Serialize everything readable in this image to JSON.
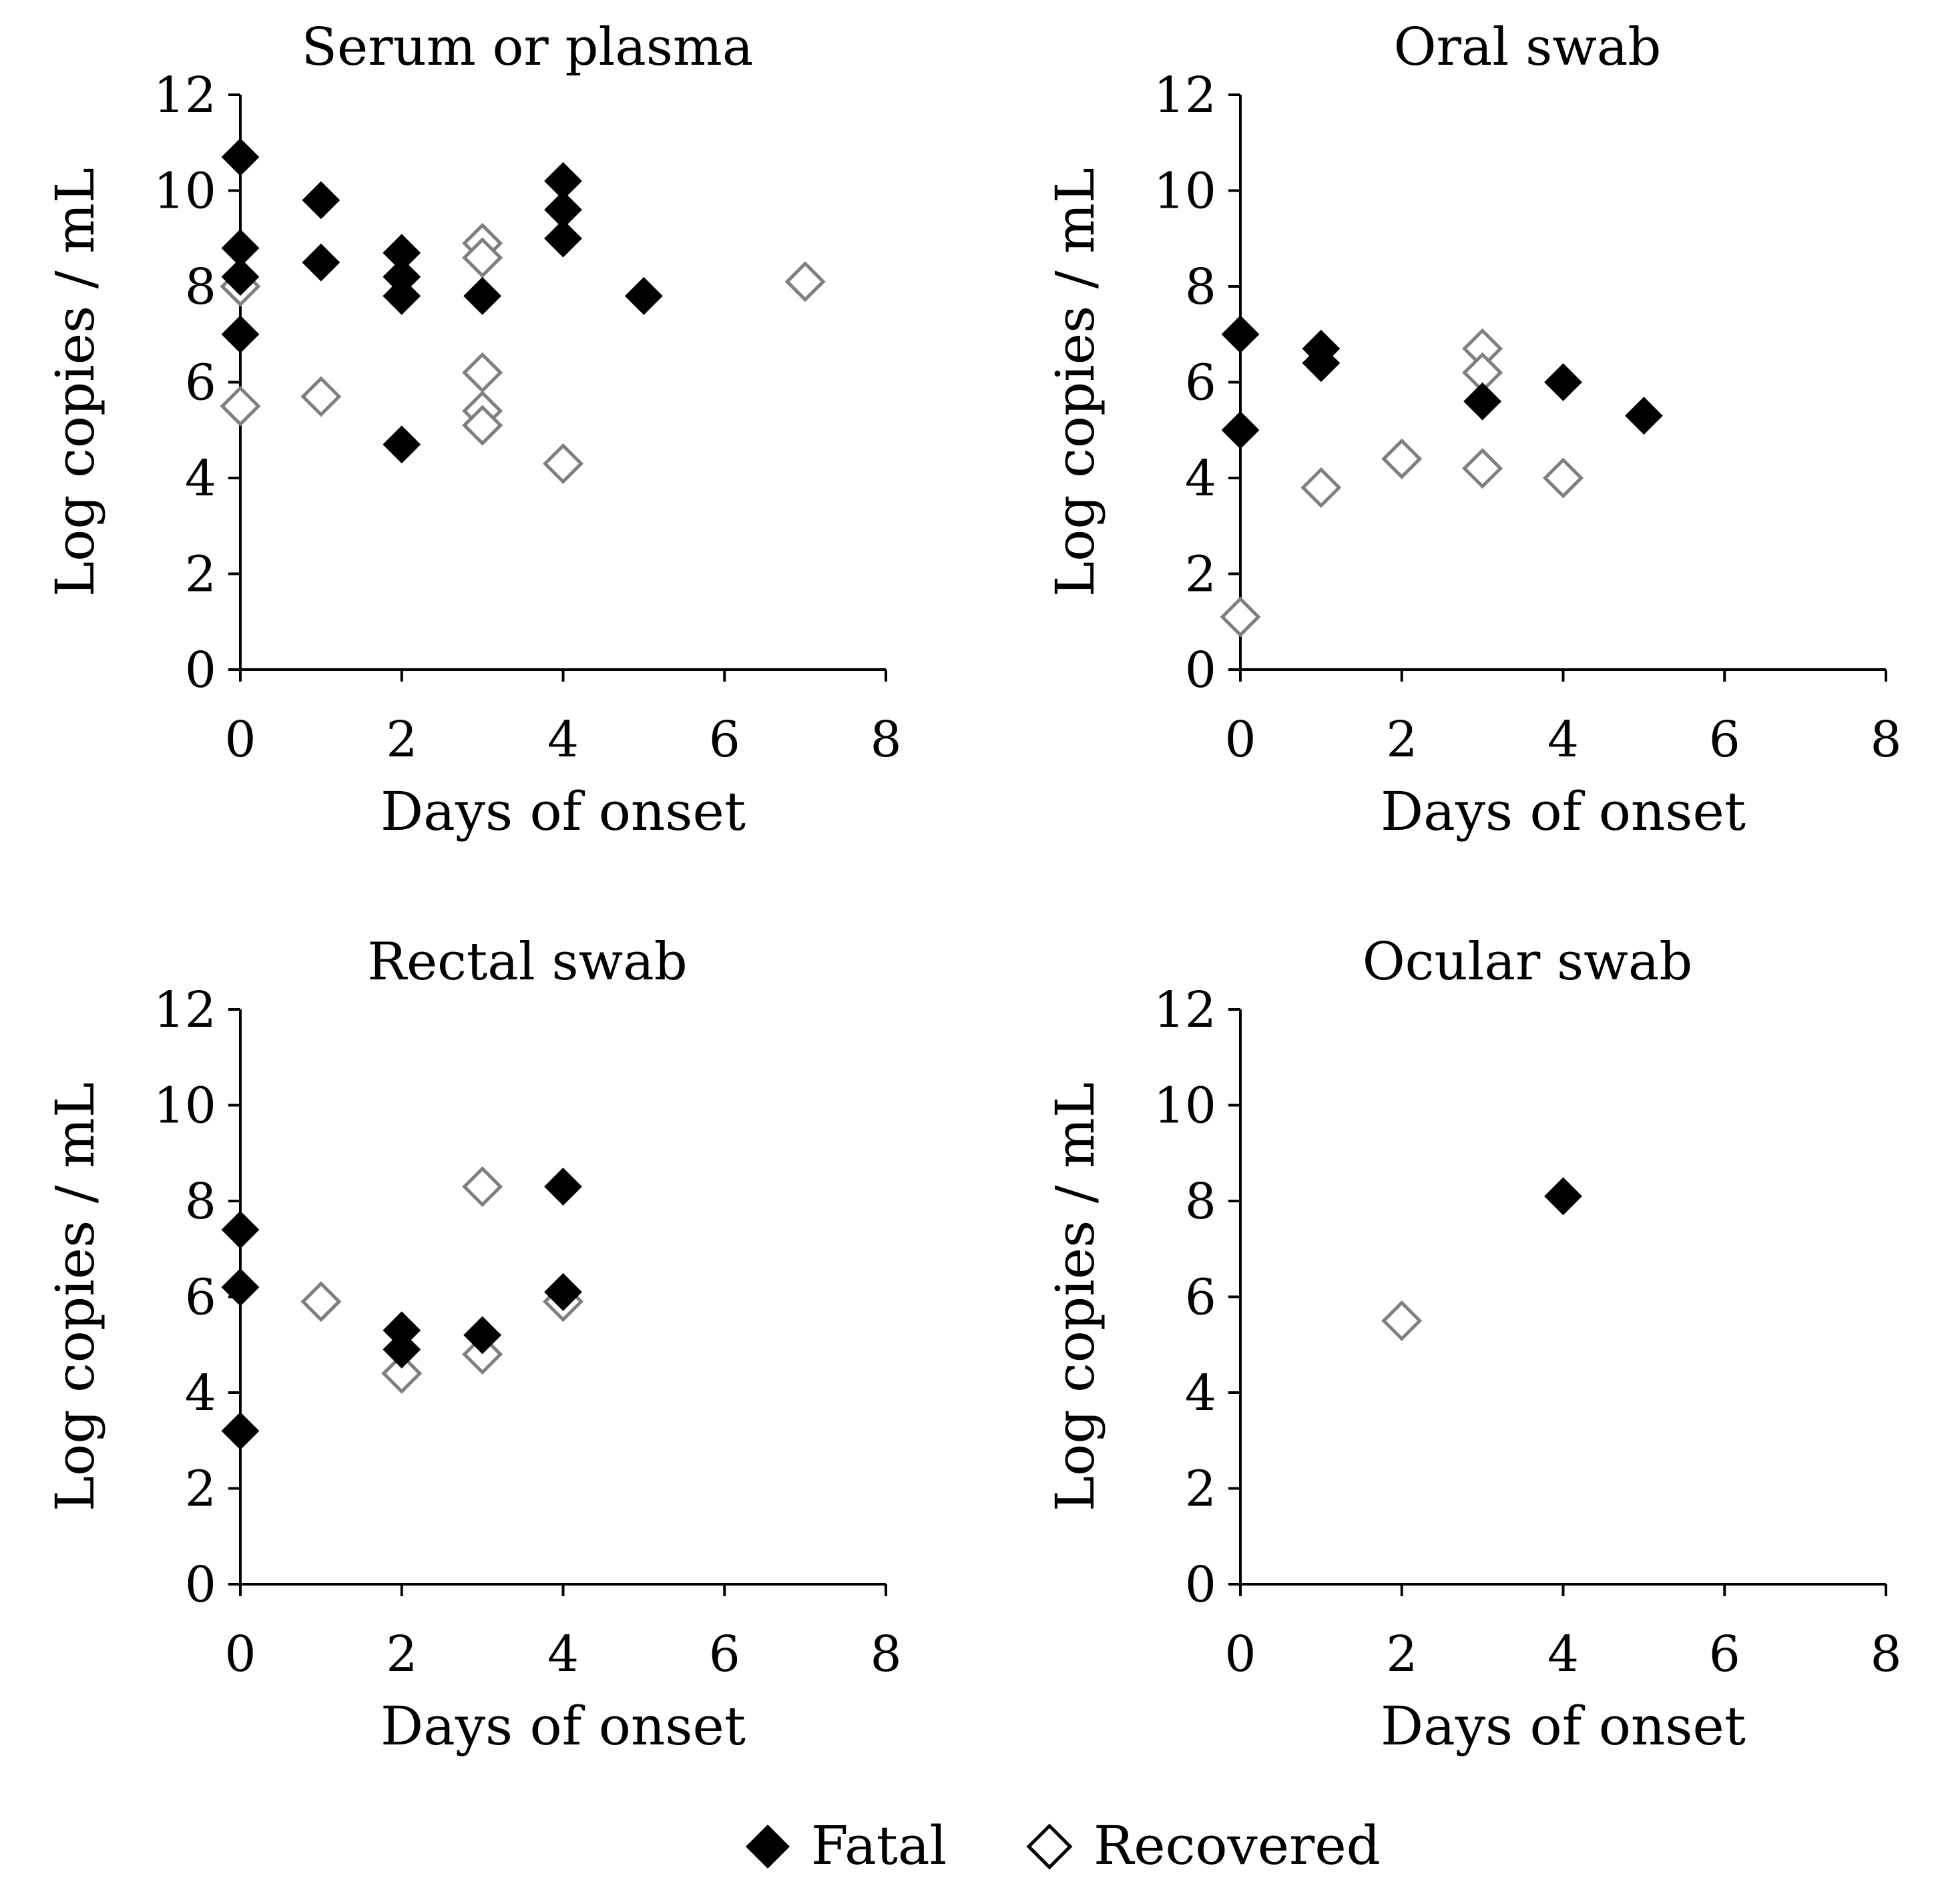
{
  "colors": {
    "fatal": "#000000",
    "recovered": "#7f7f7f",
    "axis": "#000000"
  },
  "legend": {
    "items": [
      {
        "label": "Fatal",
        "marker": "filled-diamond"
      },
      {
        "label": "Recovered",
        "marker": "open-diamond"
      }
    ]
  },
  "chart_data": [
    {
      "type": "scatter",
      "title": "Serum or plasma",
      "xlabel": "Days of onset",
      "ylabel": "Log copies / mL",
      "xlim": [
        0,
        8
      ],
      "ylim": [
        0,
        12
      ],
      "xticks": [
        "0",
        "2",
        "4",
        "6",
        "8"
      ],
      "yticks": [
        "0",
        "2",
        "4",
        "6",
        "8",
        "10",
        "12"
      ],
      "series": [
        {
          "name": "Fatal",
          "points": [
            [
              0,
              10.7
            ],
            [
              0,
              8.8
            ],
            [
              0,
              8.2
            ],
            [
              0,
              7.0
            ],
            [
              1,
              9.8
            ],
            [
              1,
              8.5
            ],
            [
              2,
              8.7
            ],
            [
              2,
              8.2
            ],
            [
              2,
              7.8
            ],
            [
              2,
              4.7
            ],
            [
              3,
              7.8
            ],
            [
              4,
              10.2
            ],
            [
              4,
              9.6
            ],
            [
              4,
              9.0
            ],
            [
              5,
              7.8
            ]
          ]
        },
        {
          "name": "Recovered",
          "points": [
            [
              0,
              8.0
            ],
            [
              0,
              5.5
            ],
            [
              1,
              5.7
            ],
            [
              3,
              8.9
            ],
            [
              3,
              8.6
            ],
            [
              3,
              6.2
            ],
            [
              3,
              5.4
            ],
            [
              3,
              5.1
            ],
            [
              4,
              4.3
            ],
            [
              7,
              8.1
            ]
          ]
        }
      ]
    },
    {
      "type": "scatter",
      "title": "Oral swab",
      "xlabel": "Days of onset",
      "ylabel": "Log copies / mL",
      "xlim": [
        0,
        8
      ],
      "ylim": [
        0,
        12
      ],
      "xticks": [
        "0",
        "2",
        "4",
        "6",
        "8"
      ],
      "yticks": [
        "0",
        "2",
        "4",
        "6",
        "8",
        "10",
        "12"
      ],
      "series": [
        {
          "name": "Fatal",
          "points": [
            [
              0,
              7.0
            ],
            [
              0,
              5.0
            ],
            [
              1,
              6.7
            ],
            [
              1,
              6.4
            ],
            [
              3,
              5.6
            ],
            [
              4,
              6.0
            ],
            [
              5,
              5.3
            ]
          ]
        },
        {
          "name": "Recovered",
          "points": [
            [
              0,
              1.1
            ],
            [
              1,
              3.8
            ],
            [
              2,
              4.4
            ],
            [
              3,
              6.7
            ],
            [
              3,
              6.2
            ],
            [
              3,
              4.2
            ],
            [
              4,
              4.0
            ]
          ]
        }
      ]
    },
    {
      "type": "scatter",
      "title": "Rectal swab",
      "xlabel": "Days of onset",
      "ylabel": "Log copies / mL",
      "xlim": [
        0,
        8
      ],
      "ylim": [
        0,
        12
      ],
      "xticks": [
        "0",
        "2",
        "4",
        "6",
        "8"
      ],
      "yticks": [
        "0",
        "2",
        "4",
        "6",
        "8",
        "10",
        "12"
      ],
      "series": [
        {
          "name": "Fatal",
          "points": [
            [
              0,
              7.4
            ],
            [
              0,
              6.2
            ],
            [
              0,
              3.2
            ],
            [
              2,
              5.3
            ],
            [
              2,
              4.9
            ],
            [
              3,
              5.2
            ],
            [
              4,
              8.3
            ],
            [
              4,
              6.1
            ]
          ]
        },
        {
          "name": "Recovered",
          "points": [
            [
              1,
              5.9
            ],
            [
              2,
              4.4
            ],
            [
              3,
              8.3
            ],
            [
              3,
              4.8
            ],
            [
              4,
              5.9
            ]
          ]
        }
      ]
    },
    {
      "type": "scatter",
      "title": "Ocular swab",
      "xlabel": "Days of onset",
      "ylabel": "Log copies / mL",
      "xlim": [
        0,
        8
      ],
      "ylim": [
        0,
        12
      ],
      "xticks": [
        "0",
        "2",
        "4",
        "6",
        "8"
      ],
      "yticks": [
        "0",
        "2",
        "4",
        "6",
        "8",
        "10",
        "12"
      ],
      "series": [
        {
          "name": "Fatal",
          "points": [
            [
              4,
              8.1
            ]
          ]
        },
        {
          "name": "Recovered",
          "points": [
            [
              2,
              5.5
            ]
          ]
        }
      ]
    }
  ]
}
